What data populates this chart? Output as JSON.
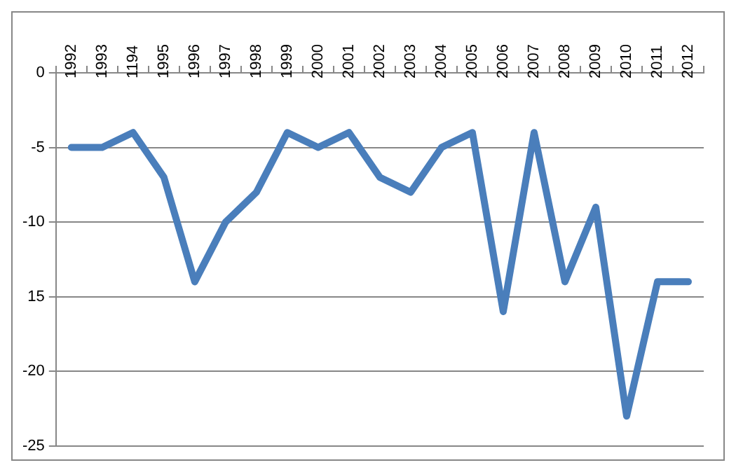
{
  "chart_data": {
    "type": "line",
    "categories": [
      "1992",
      "1993",
      "1194",
      "1995",
      "1996",
      "1997",
      "1998",
      "1999",
      "2000",
      "2001",
      "2002",
      "2003",
      "2004",
      "2005",
      "2006",
      "2007",
      "2008",
      "2009",
      "2010",
      "2011",
      "2012"
    ],
    "series": [
      {
        "color": "#4a7ebb",
        "values": [
          -5,
          -5,
          -4,
          -7,
          -14,
          -10,
          -8,
          -4,
          -5,
          -4,
          -7,
          -8,
          -5,
          -4,
          -16,
          -4,
          -14,
          -9,
          -23,
          -14,
          -14
        ]
      }
    ],
    "ylim": [
      -25,
      0
    ],
    "yticks": [
      0,
      -5,
      -10,
      {
        "value": -15,
        "label": "15"
      },
      -20,
      -25
    ],
    "grid": "y",
    "legend": false,
    "marker": "none",
    "line_style": "solid"
  }
}
